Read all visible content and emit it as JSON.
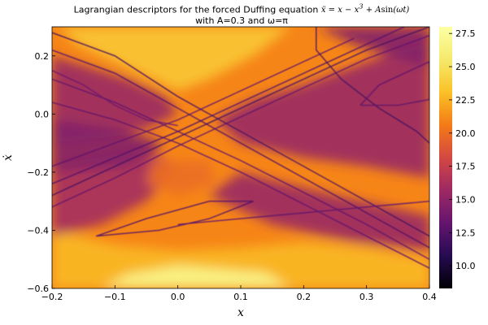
{
  "chart_data": {
    "type": "heatmap",
    "title_line1_prefix": "Lagrangian descriptors for the forced Duffing equation",
    "title_equation": {
      "lhs": "ẍ",
      "rhs_parts": [
        "x",
        "x",
        "3",
        "A",
        "sin",
        "ωt"
      ]
    },
    "title_line2": "with A=0.3 and ω=π",
    "xlabel": "x",
    "ylabel": "ẋ",
    "xlim": [
      -0.2,
      0.4
    ],
    "ylim": [
      -0.6,
      0.3
    ],
    "x_ticks": [
      {
        "v": -0.2,
        "label": "−0.2"
      },
      {
        "v": -0.1,
        "label": "−0.1"
      },
      {
        "v": 0.0,
        "label": "0.0"
      },
      {
        "v": 0.1,
        "label": "0.1"
      },
      {
        "v": 0.2,
        "label": "0.2"
      },
      {
        "v": 0.3,
        "label": "0.3"
      },
      {
        "v": 0.4,
        "label": "0.4"
      }
    ],
    "y_ticks": [
      {
        "v": 0.2,
        "label": "0.2"
      },
      {
        "v": 0.0,
        "label": "0.0"
      },
      {
        "v": -0.2,
        "label": "−0.2"
      },
      {
        "v": -0.4,
        "label": "−0.4"
      },
      {
        "v": -0.6,
        "label": "−0.6"
      }
    ],
    "colorbar": {
      "range": [
        8.3,
        28.0
      ],
      "colormap": "inferno",
      "ticks": [
        {
          "v": 10.0,
          "label": "10.0"
        },
        {
          "v": 12.5,
          "label": "12.5"
        },
        {
          "v": 15.0,
          "label": "15.0"
        },
        {
          "v": 17.5,
          "label": "17.5"
        },
        {
          "v": 20.0,
          "label": "20.0"
        },
        {
          "v": 22.5,
          "label": "22.5"
        },
        {
          "v": 25.0,
          "label": "25.0"
        },
        {
          "v": 27.5,
          "label": "27.5"
        }
      ]
    },
    "background_level": 21,
    "regions": [
      {
        "name": "bottom-bright-band",
        "points": [
          [
            -0.2,
            -0.6
          ],
          [
            0.4,
            -0.6
          ],
          [
            0.4,
            -0.5
          ],
          [
            0.3,
            -0.46
          ],
          [
            0.2,
            -0.44
          ],
          [
            0.1,
            -0.46
          ],
          [
            0.0,
            -0.47
          ],
          [
            -0.1,
            -0.45
          ],
          [
            -0.2,
            -0.4
          ]
        ],
        "level": 22.8
      },
      {
        "name": "bottom-center-glow",
        "points": [
          [
            -0.12,
            -0.6
          ],
          [
            0.18,
            -0.6
          ],
          [
            0.14,
            -0.545
          ],
          [
            0.0,
            -0.52
          ],
          [
            -0.08,
            -0.55
          ]
        ],
        "level": 27
      },
      {
        "name": "top-center-bright",
        "points": [
          [
            -0.19,
            0.3
          ],
          [
            0.18,
            0.3
          ],
          [
            0.12,
            0.2
          ],
          [
            0.05,
            0.12
          ],
          [
            0.0,
            0.08
          ],
          [
            -0.04,
            0.12
          ],
          [
            -0.1,
            0.18
          ],
          [
            -0.16,
            0.24
          ]
        ],
        "level": 23.5
      },
      {
        "name": "left-purple-lobe",
        "points": [
          [
            -0.2,
            0.2
          ],
          [
            -0.08,
            0.12
          ],
          [
            -0.02,
            0.06
          ],
          [
            0.0,
            0.0
          ],
          [
            -0.05,
            -0.05
          ],
          [
            -0.12,
            -0.08
          ],
          [
            -0.2,
            -0.1
          ]
        ],
        "level": 15.5
      },
      {
        "name": "right-purple-lobe",
        "points": [
          [
            0.4,
            0.25
          ],
          [
            0.3,
            0.18
          ],
          [
            0.2,
            0.1
          ],
          [
            0.12,
            0.05
          ],
          [
            0.06,
            -0.02
          ],
          [
            0.1,
            -0.1
          ],
          [
            0.2,
            -0.15
          ],
          [
            0.3,
            -0.18
          ],
          [
            0.4,
            -0.22
          ]
        ],
        "level": 15.5
      },
      {
        "name": "lower-left-purple",
        "points": [
          [
            -0.2,
            -0.18
          ],
          [
            -0.05,
            -0.12
          ],
          [
            0.0,
            -0.18
          ],
          [
            -0.05,
            -0.3
          ],
          [
            -0.12,
            -0.38
          ],
          [
            -0.2,
            -0.42
          ]
        ],
        "level": 16
      },
      {
        "name": "lower-right-purple",
        "points": [
          [
            0.4,
            -0.35
          ],
          [
            0.25,
            -0.28
          ],
          [
            0.1,
            -0.2
          ],
          [
            0.05,
            -0.28
          ],
          [
            0.15,
            -0.38
          ],
          [
            0.28,
            -0.44
          ],
          [
            0.4,
            -0.47
          ]
        ],
        "level": 15.5
      },
      {
        "name": "center-orange-spot",
        "points": [
          [
            -0.04,
            -0.16
          ],
          [
            0.05,
            -0.16
          ],
          [
            0.06,
            -0.24
          ],
          [
            0.0,
            -0.28
          ],
          [
            -0.05,
            -0.24
          ]
        ],
        "level": 20
      },
      {
        "name": "upper-right-purple",
        "points": [
          [
            0.22,
            0.3
          ],
          [
            0.4,
            0.3
          ],
          [
            0.4,
            0.16
          ],
          [
            0.34,
            0.2
          ],
          [
            0.28,
            0.24
          ]
        ],
        "level": 14.5
      },
      {
        "name": "left-mid-purple",
        "points": [
          [
            -0.2,
            -0.02
          ],
          [
            -0.1,
            -0.05
          ],
          [
            -0.02,
            -0.1
          ],
          [
            -0.08,
            -0.18
          ],
          [
            -0.2,
            -0.2
          ]
        ],
        "level": 14.5
      }
    ],
    "curves": [
      {
        "name": "unstable-manifold-a",
        "points": [
          [
            -0.2,
            0.28
          ],
          [
            -0.1,
            0.2
          ],
          [
            0.0,
            0.06
          ],
          [
            0.1,
            -0.06
          ],
          [
            0.2,
            -0.18
          ],
          [
            0.3,
            -0.3
          ],
          [
            0.4,
            -0.42
          ]
        ],
        "level": 12
      },
      {
        "name": "unstable-manifold-b",
        "points": [
          [
            -0.2,
            0.22
          ],
          [
            -0.1,
            0.14
          ],
          [
            0.0,
            0.02
          ],
          [
            0.1,
            -0.1
          ],
          [
            0.2,
            -0.22
          ],
          [
            0.3,
            -0.34
          ],
          [
            0.4,
            -0.46
          ]
        ],
        "level": 12.5
      },
      {
        "name": "unstable-manifold-c",
        "points": [
          [
            -0.2,
            0.12
          ],
          [
            -0.1,
            0.04
          ],
          [
            0.0,
            -0.06
          ],
          [
            0.1,
            -0.16
          ],
          [
            0.2,
            -0.27
          ],
          [
            0.3,
            -0.38
          ],
          [
            0.4,
            -0.5
          ]
        ],
        "level": 13
      },
      {
        "name": "unstable-manifold-d",
        "points": [
          [
            -0.2,
            0.04
          ],
          [
            -0.1,
            -0.02
          ],
          [
            0.0,
            -0.1
          ],
          [
            0.1,
            -0.2
          ],
          [
            0.2,
            -0.31
          ],
          [
            0.3,
            -0.42
          ],
          [
            0.4,
            -0.53
          ]
        ],
        "level": 13
      },
      {
        "name": "stable-manifold-a",
        "points": [
          [
            -0.2,
            -0.28
          ],
          [
            -0.1,
            -0.18
          ],
          [
            0.0,
            -0.08
          ],
          [
            0.1,
            0.02
          ],
          [
            0.2,
            0.12
          ],
          [
            0.3,
            0.22
          ],
          [
            0.4,
            0.3
          ]
        ],
        "level": 12
      },
      {
        "name": "stable-manifold-b",
        "points": [
          [
            -0.2,
            -0.24
          ],
          [
            -0.1,
            -0.15
          ],
          [
            0.0,
            -0.06
          ],
          [
            0.1,
            0.04
          ],
          [
            0.2,
            0.14
          ],
          [
            0.3,
            0.24
          ],
          [
            0.36,
            0.3
          ]
        ],
        "level": 12.5
      },
      {
        "name": "stable-manifold-c",
        "points": [
          [
            -0.2,
            -0.32
          ],
          [
            -0.1,
            -0.22
          ],
          [
            0.0,
            -0.11
          ],
          [
            0.1,
            -0.01
          ],
          [
            0.2,
            0.09
          ],
          [
            0.3,
            0.19
          ],
          [
            0.4,
            0.27
          ]
        ],
        "level": 13
      },
      {
        "name": "stable-manifold-d",
        "points": [
          [
            -0.2,
            -0.18
          ],
          [
            -0.1,
            -0.1
          ],
          [
            0.0,
            -0.02
          ],
          [
            0.1,
            0.08
          ],
          [
            0.2,
            0.18
          ],
          [
            0.28,
            0.26
          ]
        ],
        "level": 13
      },
      {
        "name": "lower-left-lobe",
        "points": [
          [
            -0.13,
            -0.42
          ],
          [
            -0.05,
            -0.36
          ],
          [
            0.05,
            -0.3
          ],
          [
            0.12,
            -0.3
          ],
          [
            0.05,
            -0.36
          ],
          [
            -0.03,
            -0.4
          ],
          [
            -0.13,
            -0.42
          ]
        ],
        "level": 12.5
      },
      {
        "name": "lower-right-lobe",
        "points": [
          [
            0.0,
            -0.38
          ],
          [
            0.1,
            -0.36
          ],
          [
            0.2,
            -0.34
          ],
          [
            0.3,
            -0.32
          ],
          [
            0.4,
            -0.3
          ]
        ],
        "level": 13
      },
      {
        "name": "upper-right-fold",
        "points": [
          [
            0.22,
            0.3
          ],
          [
            0.22,
            0.22
          ],
          [
            0.26,
            0.12
          ],
          [
            0.32,
            0.02
          ],
          [
            0.38,
            -0.06
          ],
          [
            0.4,
            -0.1
          ]
        ],
        "level": 12
      },
      {
        "name": "right-loop",
        "points": [
          [
            0.29,
            0.03
          ],
          [
            0.32,
            0.1
          ],
          [
            0.38,
            0.16
          ],
          [
            0.4,
            0.18
          ],
          [
            0.4,
            0.05
          ],
          [
            0.35,
            0.03
          ],
          [
            0.29,
            0.03
          ]
        ],
        "level": 13
      },
      {
        "name": "upper-left-arc",
        "points": [
          [
            -0.2,
            0.15
          ],
          [
            -0.15,
            0.1
          ],
          [
            -0.1,
            0.03
          ],
          [
            -0.05,
            -0.02
          ],
          [
            0.0,
            -0.04
          ]
        ],
        "level": 13.5
      }
    ]
  }
}
